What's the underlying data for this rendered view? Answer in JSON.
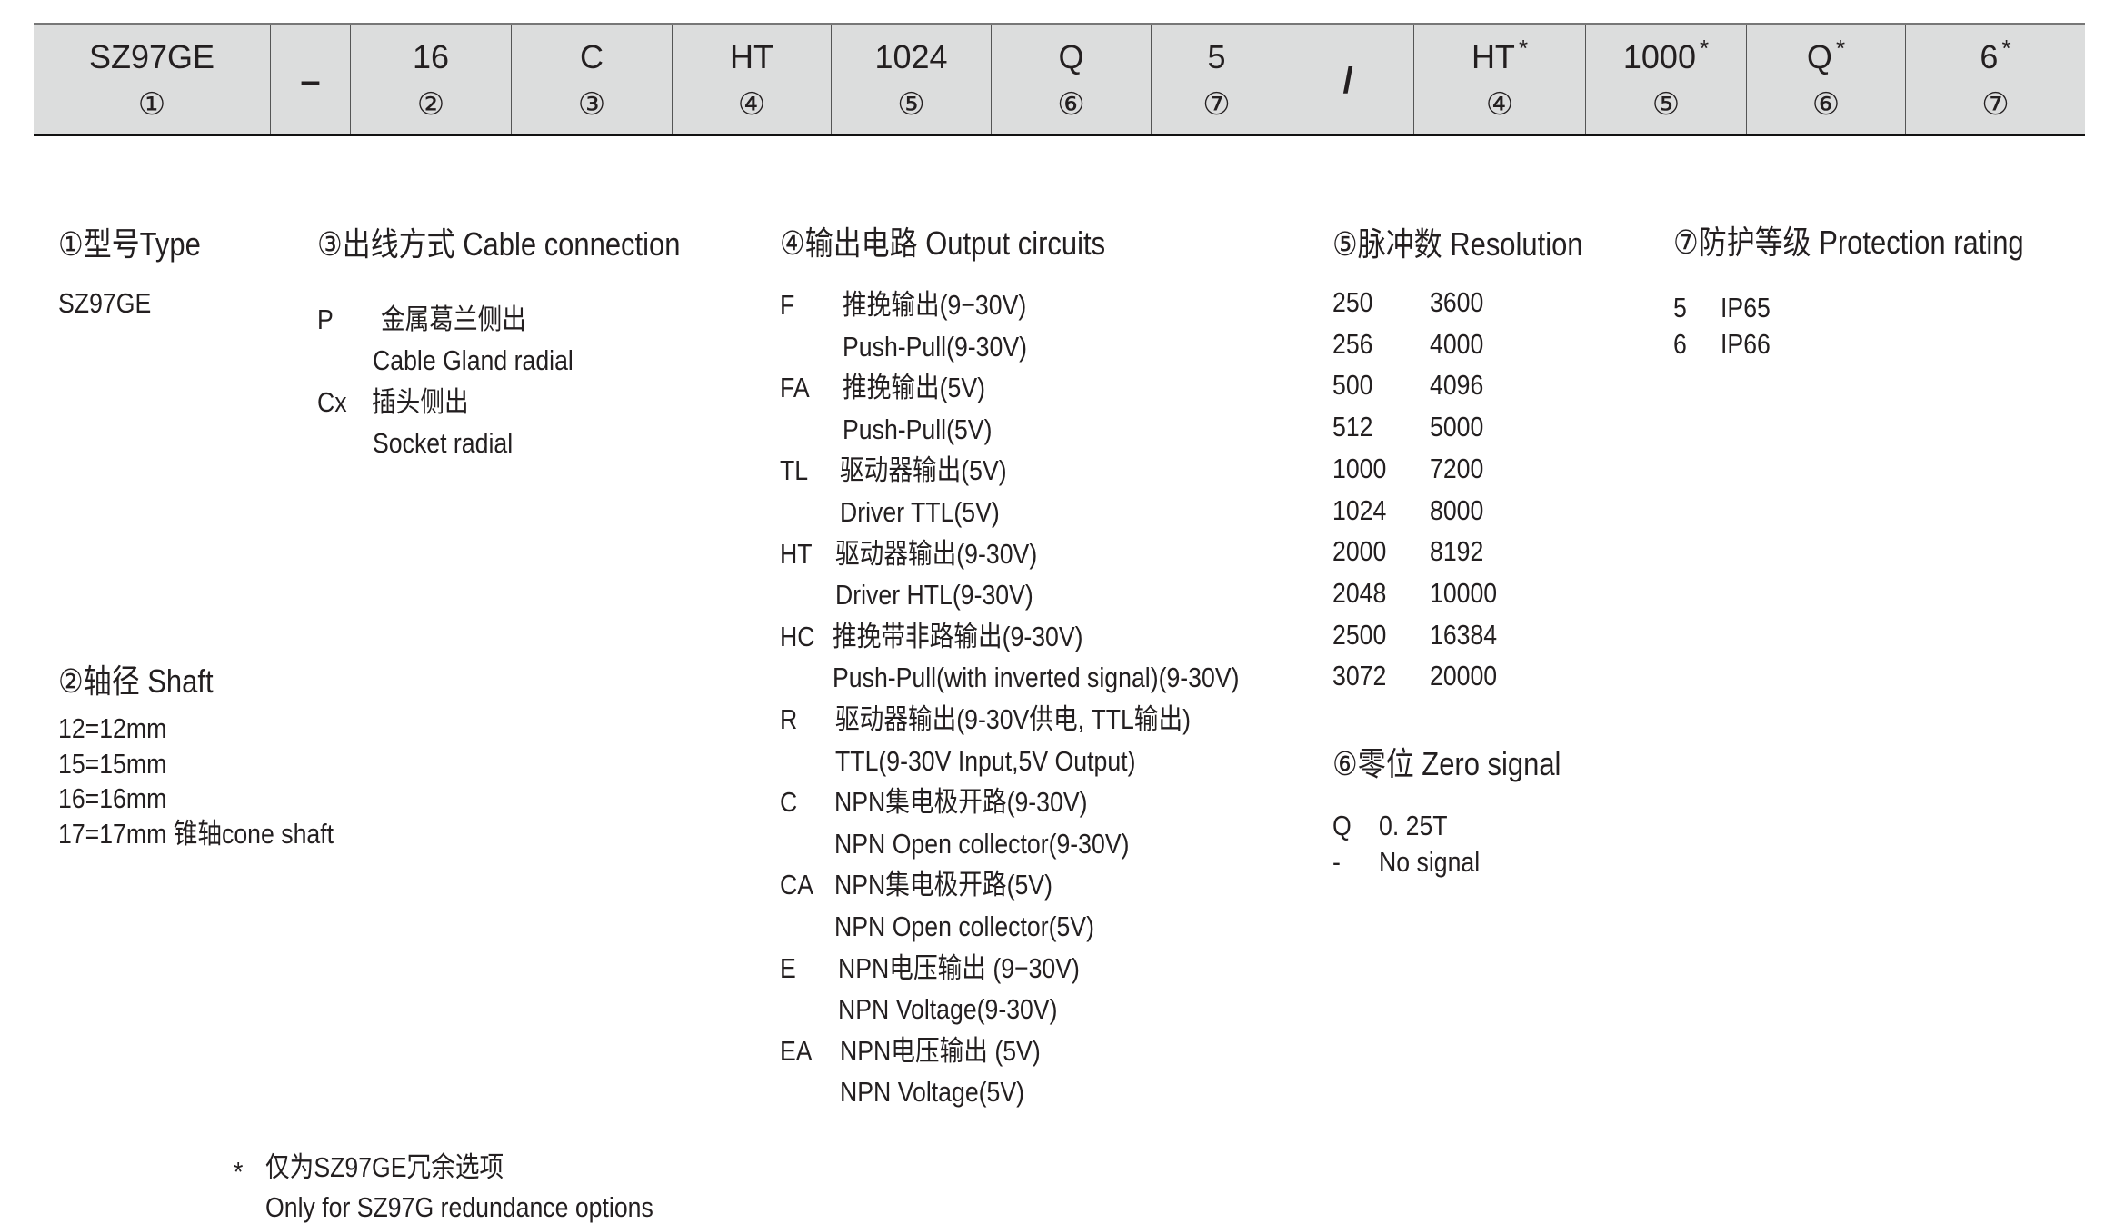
{
  "code_table": {
    "cells": [
      {
        "value": "SZ97GE",
        "num": "①"
      },
      {
        "value": "–",
        "num": "",
        "separator": true
      },
      {
        "value": "16",
        "num": "②"
      },
      {
        "value": "C",
        "num": "③"
      },
      {
        "value": "HT",
        "num": "④"
      },
      {
        "value": "1024",
        "num": "⑤"
      },
      {
        "value": "Q",
        "num": "⑥"
      },
      {
        "value": "5",
        "num": "⑦"
      },
      {
        "value": "/",
        "num": "",
        "separator": true
      },
      {
        "value": "HT",
        "num": "④",
        "star": "*"
      },
      {
        "value": "1000",
        "num": "⑤",
        "star": "*"
      },
      {
        "value": "Q",
        "num": "⑥",
        "star": "*"
      },
      {
        "value": "6",
        "num": "⑦",
        "star": "*"
      }
    ]
  },
  "type_section": {
    "title": "①型号Type",
    "value": "SZ97GE"
  },
  "shaft_section": {
    "title": "②轴径 Shaft",
    "items": [
      "12=12mm",
      "15=15mm",
      "16=16mm",
      "17=17mm 锥轴cone shaft"
    ]
  },
  "cable_section": {
    "title": "③出线方式 Cable connection",
    "items": [
      {
        "code": "P",
        "cn": "金属葛兰侧出",
        "en": "Cable Gland radial"
      },
      {
        "code": "Cx",
        "cn": "插头侧出",
        "en": "Socket radial"
      }
    ]
  },
  "output_section": {
    "title": "④输出电路 Output circuits",
    "items": [
      {
        "code": "F",
        "cn": "推挽输出(9−30V)",
        "en": "Push-Pull(9-30V)"
      },
      {
        "code": "FA",
        "cn": "推挽输出(5V)",
        "en": "Push-Pull(5V)"
      },
      {
        "code": "TL",
        "cn": "驱动器输出(5V)",
        "en": "Driver TTL(5V)"
      },
      {
        "code": "HT",
        "cn": "驱动器输出(9-30V)",
        "en": "Driver HTL(9-30V)"
      },
      {
        "code": "HC",
        "cn": "推挽带非路输出(9-30V)",
        "en": "Push-Pull(with inverted signal)(9-30V)"
      },
      {
        "code": "R",
        "cn": "驱动器输出(9-30V供电, TTL输出)",
        "en": "TTL(9-30V Input,5V Output)"
      },
      {
        "code": "C",
        "cn": "NPN集电极开路(9-30V)",
        "en": "NPN Open collector(9-30V)"
      },
      {
        "code": "CA",
        "cn": "NPN集电极开路(5V)",
        "en": "NPN Open collector(5V)"
      },
      {
        "code": "E",
        "cn": "NPN电压输出 (9−30V)",
        "en": "NPN Voltage(9-30V)"
      },
      {
        "code": "EA",
        "cn": "NPN电压输出 (5V)",
        "en": "NPN Voltage(5V)"
      }
    ]
  },
  "resolution_section": {
    "title": "⑤脉冲数 Resolution",
    "col1": [
      "250",
      "256",
      "500",
      "512",
      "1000",
      "1024",
      "2000",
      "2048",
      "2500",
      "3072"
    ],
    "col2": [
      "3600",
      "4000",
      "4096",
      "5000",
      "7200",
      "8000",
      "8192",
      "10000",
      "16384",
      "20000"
    ]
  },
  "zero_section": {
    "title": "⑥零位  Zero signal",
    "items": [
      {
        "code": "Q",
        "label": "0. 25T"
      },
      {
        "code": "-",
        "label": "No signal"
      }
    ]
  },
  "protection_section": {
    "title": "⑦防护等级 Protection  rating",
    "items": [
      {
        "code": "5",
        "label": "IP65"
      },
      {
        "code": "6",
        "label": "IP66"
      }
    ]
  },
  "footnote": {
    "star": "*",
    "cn": "仅为SZ97GE冗余选项",
    "en": "Only for  SZ97G redundance options"
  }
}
